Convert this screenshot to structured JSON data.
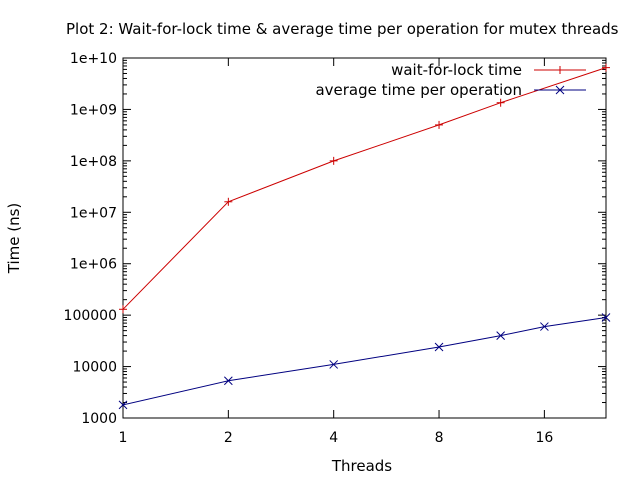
{
  "chart_data": {
    "type": "line",
    "title": "Plot 2: Wait-for-lock time & average time per operation for mutex threads",
    "xlabel": "Threads",
    "ylabel": "Time (ns)",
    "xscale": "log2",
    "yscale": "log10",
    "xlim": [
      1,
      24
    ],
    "ylim": [
      1000,
      10000000000
    ],
    "xticks": [
      1,
      2,
      4,
      8,
      16
    ],
    "xtick_labels": [
      "1",
      "2",
      "4",
      "8",
      "16"
    ],
    "yticks": [
      1000,
      10000,
      100000,
      1000000,
      10000000,
      100000000,
      1000000000,
      10000000000
    ],
    "ytick_labels": [
      "1000",
      "10000",
      "100000",
      "1e+06",
      "1e+07",
      "1e+08",
      "1e+09",
      "1e+10"
    ],
    "grid": false,
    "legend_position": "top-right",
    "series": [
      {
        "name": "wait-for-lock time",
        "color": "#cc0000",
        "marker": "plus",
        "x": [
          1,
          2,
          4,
          8,
          12,
          24
        ],
        "y": [
          130000,
          16000000,
          100000000,
          500000000,
          1350000000,
          6500000000
        ]
      },
      {
        "name": "average time per operation",
        "color": "#000080",
        "marker": "cross",
        "x": [
          1,
          2,
          4,
          8,
          12,
          16,
          24
        ],
        "y": [
          1800,
          5300,
          11000,
          24000,
          40000,
          60000,
          90000
        ]
      }
    ]
  }
}
